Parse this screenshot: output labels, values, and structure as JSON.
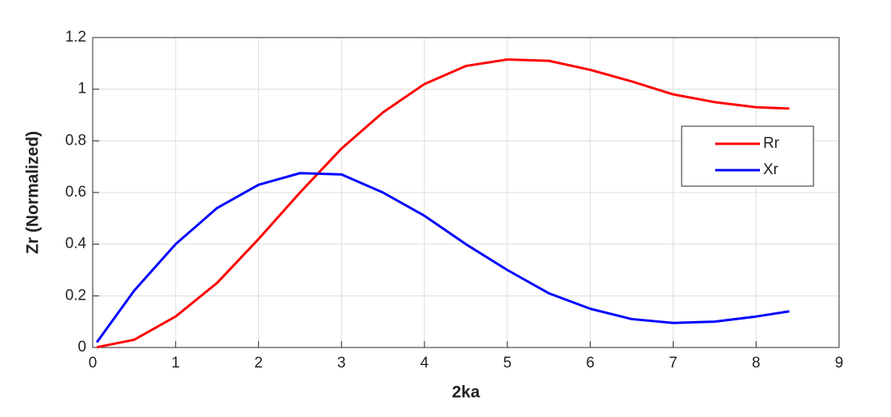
{
  "chart_data": {
    "type": "line",
    "xlabel": "2ka",
    "ylabel": "Zr (Normalized)",
    "x": [
      0.05,
      0.5,
      1,
      1.5,
      2,
      2.5,
      3,
      3.5,
      4,
      4.5,
      5,
      5.5,
      6,
      6.5,
      7,
      7.5,
      8,
      8.4
    ],
    "series": [
      {
        "name": "Rr",
        "color": "#ff0000",
        "values": [
          0.001,
          0.03,
          0.12,
          0.25,
          0.42,
          0.6,
          0.77,
          0.91,
          1.02,
          1.09,
          1.115,
          1.11,
          1.075,
          1.03,
          0.98,
          0.95,
          0.93,
          0.925
        ]
      },
      {
        "name": "Xr",
        "color": "#0000ff",
        "values": [
          0.02,
          0.22,
          0.4,
          0.54,
          0.63,
          0.675,
          0.67,
          0.6,
          0.51,
          0.4,
          0.3,
          0.21,
          0.15,
          0.11,
          0.095,
          0.1,
          0.12,
          0.14
        ]
      }
    ],
    "xlim": [
      0,
      9
    ],
    "xticks": [
      0,
      1,
      2,
      3,
      4,
      5,
      6,
      7,
      8,
      9
    ],
    "ylim": [
      0,
      1.2
    ],
    "yticks": [
      0,
      0.2,
      0.4,
      0.6,
      0.8,
      1,
      1.2
    ],
    "grid": true,
    "legend": "right"
  }
}
